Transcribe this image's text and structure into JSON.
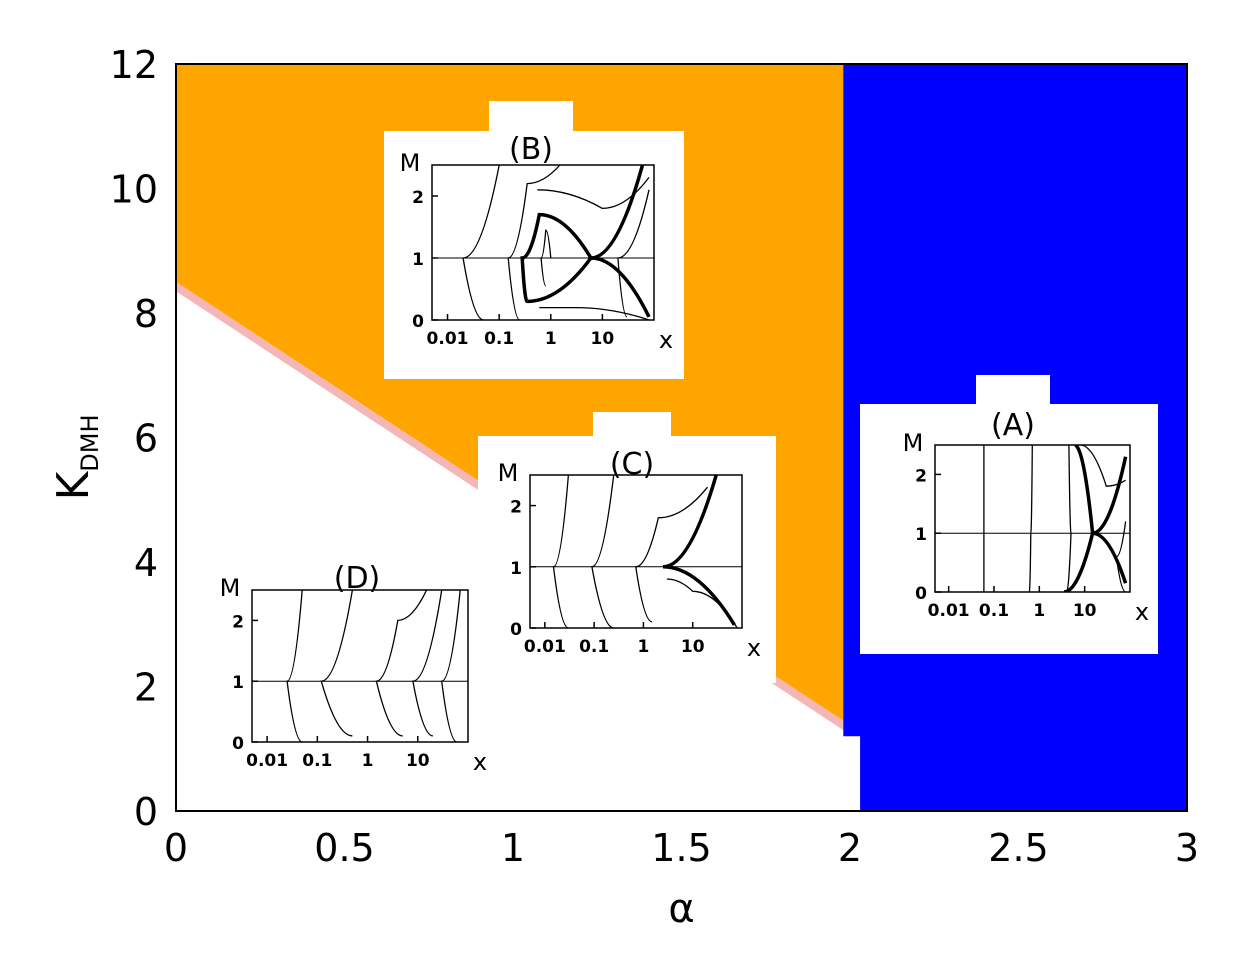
{
  "chart_data": {
    "type": "area",
    "title": "",
    "xlabel": "α",
    "ylabel": "K",
    "ylabel_subscript": "DMH",
    "xlim": [
      0,
      3
    ],
    "ylim": [
      0,
      12
    ],
    "xticks": [
      "0",
      "0.5",
      "1",
      "1.5",
      "2",
      "2.5",
      "3"
    ],
    "yticks": [
      "0",
      "2",
      "4",
      "6",
      "8",
      "10",
      "12"
    ],
    "colors": {
      "orange": "#FFA500",
      "blue": "#0000FF",
      "pink": "#F4B6B6",
      "white": "#FFFFFF"
    },
    "regions": [
      {
        "color": "orange",
        "polygon": [
          [
            0,
            8.5
          ],
          [
            1.98,
            1.45
          ],
          [
            1.98,
            12
          ],
          [
            0,
            12
          ]
        ]
      },
      {
        "color": "pink",
        "polygon": [
          [
            0,
            8.35
          ],
          [
            1.98,
            1.3
          ],
          [
            1.98,
            1.45
          ],
          [
            0,
            8.5
          ]
        ]
      },
      {
        "color": "blue",
        "polygon": [
          [
            1.98,
            12
          ],
          [
            3,
            12
          ],
          [
            3,
            0
          ],
          [
            2.03,
            0
          ],
          [
            2.03,
            1.2
          ],
          [
            1.98,
            1.2
          ]
        ]
      }
    ],
    "insets": [
      {
        "label": "(A)",
        "ylabel": "M",
        "xlabel": "x",
        "yticks": [
          "0",
          "1",
          "2"
        ],
        "xticks": [
          "0.01",
          "0.1",
          "1",
          "10"
        ],
        "curves": [
          {
            "bold": false,
            "points": [
              [
                0.06,
                0
              ],
              [
                0.06,
                2.5
              ]
            ]
          },
          {
            "bold": false,
            "points": [
              [
                0.6,
                0
              ],
              [
                0.65,
                1
              ],
              [
                0.7,
                2.5
              ]
            ]
          },
          {
            "bold": false,
            "points": [
              [
                4,
                0
              ],
              [
                5,
                1
              ],
              [
                4.5,
                2.5
              ]
            ]
          },
          {
            "bold": true,
            "points": [
              [
                3.5,
                0
              ],
              [
                15,
                1
              ],
              [
                80,
                2.3
              ]
            ]
          },
          {
            "bold": true,
            "points": [
              [
                6,
                2.5
              ],
              [
                15,
                1
              ],
              [
                80,
                0.15
              ]
            ]
          },
          {
            "bold": false,
            "points": [
              [
                8,
                2.5
              ],
              [
                30,
                1.8
              ],
              [
                80,
                1.9
              ]
            ]
          },
          {
            "bold": false,
            "points": [
              [
                80,
                0
              ],
              [
                50,
                0.6
              ],
              [
                80,
                1.2
              ]
            ]
          }
        ]
      },
      {
        "label": "(B)",
        "ylabel": "M",
        "xlabel": "x",
        "yticks": [
          "0",
          "1",
          "2"
        ],
        "xticks": [
          "0.01",
          "0.1",
          "1",
          "10"
        ],
        "curves": [
          {
            "bold": false,
            "points": [
              [
                0.05,
                0
              ],
              [
                0.02,
                1
              ],
              [
                0.1,
                2.5
              ]
            ]
          },
          {
            "bold": false,
            "points": [
              [
                0.25,
                0
              ],
              [
                0.15,
                1
              ],
              [
                0.35,
                2.2
              ],
              [
                1.5,
                2.5
              ]
            ]
          },
          {
            "bold": false,
            "points": [
              [
                0.8,
                0.55
              ],
              [
                0.65,
                1
              ],
              [
                0.8,
                1.45
              ],
              [
                1,
                1
              ]
            ]
          },
          {
            "bold": true,
            "points": [
              [
                0.35,
                0.3
              ],
              [
                0.28,
                1
              ],
              [
                0.6,
                1.7
              ],
              [
                6,
                1
              ],
              [
                60,
                2.5
              ]
            ]
          },
          {
            "bold": true,
            "points": [
              [
                0.35,
                0.3
              ],
              [
                6,
                1
              ],
              [
                80,
                0.05
              ]
            ]
          },
          {
            "bold": false,
            "points": [
              [
                0.6,
                0.2
              ],
              [
                3,
                0.2
              ],
              [
                80,
                0
              ]
            ]
          },
          {
            "bold": false,
            "points": [
              [
                0.55,
                2.1
              ],
              [
                10,
                1.8
              ],
              [
                80,
                2.3
              ]
            ]
          },
          {
            "bold": false,
            "points": [
              [
                30,
                0.05
              ],
              [
                20,
                1
              ],
              [
                80,
                2.1
              ]
            ]
          }
        ]
      },
      {
        "label": "(C)",
        "ylabel": "M",
        "xlabel": "x",
        "yticks": [
          "0",
          "1",
          "2"
        ],
        "xticks": [
          "0.01",
          "0.1",
          "1",
          "10"
        ],
        "curves": [
          {
            "bold": false,
            "points": [
              [
                0.03,
                0
              ],
              [
                0.015,
                1
              ],
              [
                0.03,
                2.5
              ]
            ]
          },
          {
            "bold": false,
            "points": [
              [
                0.25,
                0
              ],
              [
                0.09,
                1
              ],
              [
                0.25,
                2.5
              ]
            ]
          },
          {
            "bold": false,
            "points": [
              [
                1.5,
                0.1
              ],
              [
                0.7,
                1
              ],
              [
                2,
                1.8
              ],
              [
                20,
                2.3
              ]
            ]
          },
          {
            "bold": true,
            "points": [
              [
                2.5,
                1
              ],
              [
                30,
                2.5
              ]
            ]
          },
          {
            "bold": true,
            "points": [
              [
                2.5,
                1
              ],
              [
                70,
                0.05
              ]
            ]
          },
          {
            "bold": false,
            "points": [
              [
                3,
                0.8
              ],
              [
                10,
                0.6
              ],
              [
                80,
                0
              ]
            ]
          }
        ]
      },
      {
        "label": "(D)",
        "ylabel": "M",
        "xlabel": "x",
        "yticks": [
          "0",
          "1",
          "2"
        ],
        "xticks": [
          "0.01",
          "0.1",
          "1",
          "10"
        ],
        "curves": [
          {
            "bold": false,
            "points": [
              [
                0.05,
                0
              ],
              [
                0.025,
                1
              ],
              [
                0.05,
                2.5
              ]
            ]
          },
          {
            "bold": false,
            "points": [
              [
                0.5,
                0.1
              ],
              [
                0.12,
                1
              ],
              [
                0.5,
                2.5
              ]
            ]
          },
          {
            "bold": false,
            "points": [
              [
                5,
                0.1
              ],
              [
                1.5,
                1
              ],
              [
                4,
                2
              ],
              [
                15,
                2.5
              ]
            ]
          },
          {
            "bold": false,
            "points": [
              [
                20,
                0.1
              ],
              [
                8,
                1
              ],
              [
                30,
                2.5
              ]
            ]
          },
          {
            "bold": false,
            "points": [
              [
                60,
                0
              ],
              [
                30,
                1
              ],
              [
                70,
                2.5
              ]
            ]
          }
        ]
      }
    ]
  }
}
